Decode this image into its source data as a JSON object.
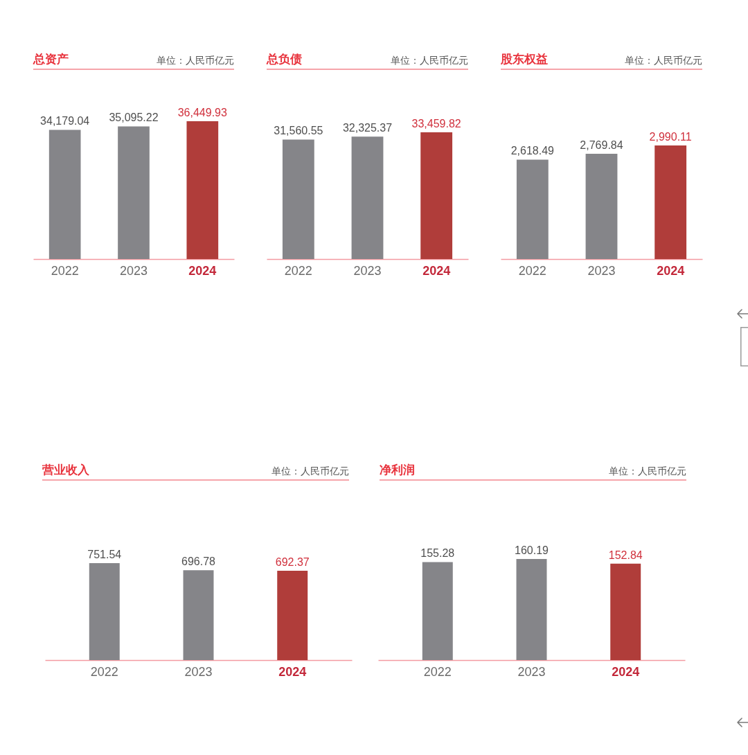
{
  "chart_data": [
    {
      "type": "bar",
      "title": "总资产",
      "subtitle": "单位：人民币亿元",
      "categories": [
        "2022",
        "2023",
        "2024"
      ],
      "values": [
        34179.04,
        35095.22,
        36449.93
      ],
      "colors": [
        "#858589",
        "#858589",
        "#b03d3a"
      ],
      "value_labels": [
        "34,179.04",
        "35,095.22",
        "36,449.93"
      ],
      "tick_labels": "x"
    },
    {
      "type": "bar",
      "title": "总负债",
      "subtitle": "单位：人民币亿元",
      "categories": [
        "2022",
        "2023",
        "2024"
      ],
      "values": [
        31560.55,
        32325.37,
        33459.82
      ],
      "colors": [
        "#858589",
        "#858589",
        "#b03d3a"
      ],
      "value_labels": [
        "31,560.55",
        "32,325.37",
        "33,459.82"
      ],
      "tick_labels": "x"
    },
    {
      "type": "bar",
      "title": "股东权益",
      "subtitle": "单位：人民币亿元",
      "categories": [
        "2022",
        "2023",
        "2024"
      ],
      "values": [
        2618.49,
        2769.84,
        2990.11
      ],
      "colors": [
        "#858589",
        "#858589",
        "#b03d3a"
      ],
      "value_labels": [
        "2,618.49",
        "2,769.84",
        "2,990.11"
      ],
      "tick_labels": "x"
    },
    {
      "type": "bar",
      "title": "营业收入",
      "subtitle": "单位：人民币亿元",
      "categories": [
        "2022",
        "2023",
        "2024"
      ],
      "values": [
        751.54,
        696.78,
        692.37
      ],
      "colors": [
        "#858589",
        "#858589",
        "#b03d3a"
      ],
      "data_labels": true,
      "tick_labels": "x"
    },
    {
      "type": "bar",
      "title": "净利润",
      "subtitle": "单位：人民币亿元",
      "categories": [
        "2022",
        "2023",
        "2024"
      ],
      "values": [
        155.28,
        160.19,
        152.84
      ],
      "colors": [
        "#858589",
        "#858589",
        "#b03d3a"
      ],
      "data_labels": true,
      "tick_labels": "x"
    }
  ]
}
